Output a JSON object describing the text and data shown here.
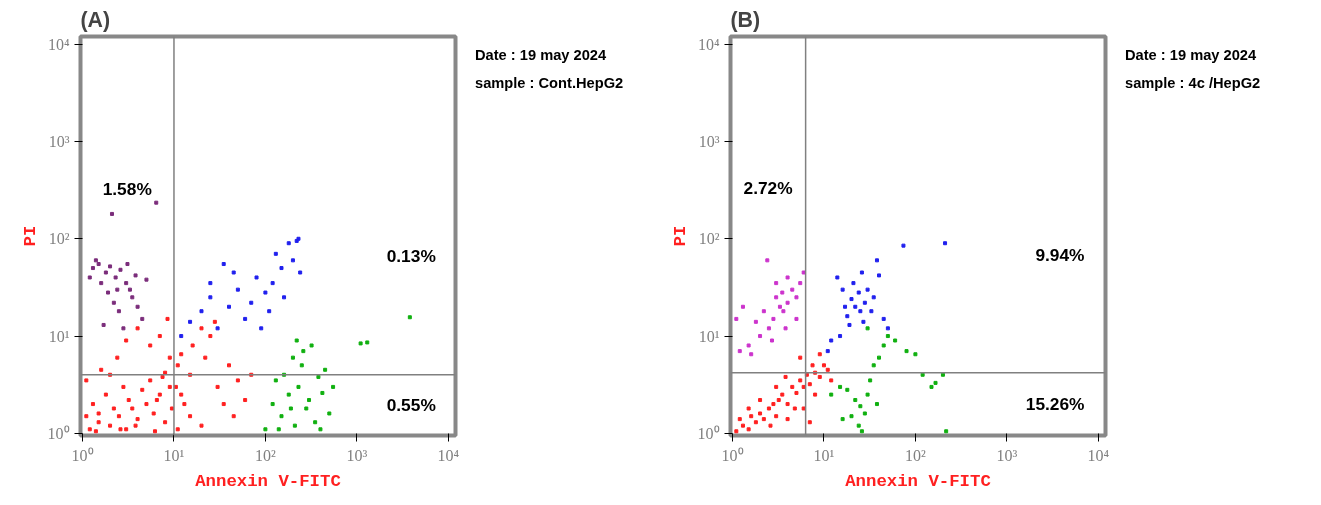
{
  "chart_data": [
    {
      "type": "scatter",
      "title": "(A)",
      "xlabel": "Annexin V-FITC",
      "ylabel": "PI",
      "log": "xy",
      "grid": false,
      "marker": "square",
      "xlim": [
        0.95,
        12000
      ],
      "ylim": [
        0.95,
        12000
      ],
      "xticks": [
        {
          "value": 1,
          "label": "10⁰"
        },
        {
          "value": 10,
          "label": "10¹"
        },
        {
          "value": 100,
          "label": "10²"
        },
        {
          "value": 1000,
          "label": "10³"
        },
        {
          "value": 10000,
          "label": "10⁴"
        }
      ],
      "yticks": [
        {
          "value": 1,
          "label": "10⁰"
        },
        {
          "value": 10,
          "label": "10¹"
        },
        {
          "value": 100,
          "label": "10²"
        },
        {
          "value": 1000,
          "label": "10³"
        },
        {
          "value": 10000,
          "label": "10⁴"
        }
      ],
      "ref_lines": [
        {
          "axis": "x",
          "value": 10,
          "color": "#808080"
        },
        {
          "axis": "y",
          "value": 4,
          "color": "#808080"
        }
      ],
      "annotations": [
        "Date : 19 may 2024",
        "sample : Cont.HepG2",
        "1.58%",
        "0.13%",
        "0.55%"
      ],
      "series": [
        {
          "color": "#ff2020",
          "x": [
            1.2,
            1.5,
            2,
            2.5,
            3,
            3.5,
            4,
            5,
            6,
            7,
            8,
            9,
            1.3,
            1.8,
            2.2,
            2.8,
            3.2,
            4.5,
            5.5,
            6.5,
            7.5,
            1.1,
            1.6,
            2.4,
            3,
            4,
            5.5,
            7,
            8.5,
            10.5,
            11,
            12,
            13,
            15,
            16,
            20,
            22,
            25,
            28,
            30,
            35,
            40,
            45,
            50,
            60,
            70,
            20,
            15,
            11,
            12,
            9.5,
            8,
            9,
            2,
            1.5,
            1.1,
            1.4,
            2.6,
            3.8,
            6.2
          ],
          "values": [
            1.1,
            1.3,
            1.2,
            1.5,
            1.1,
            1.8,
            1.4,
            2,
            1.6,
            2.5,
            1.3,
            3,
            2,
            2.5,
            1.8,
            3,
            2.2,
            2.8,
            3.5,
            2.2,
            3.8,
            3.5,
            4.5,
            6,
            9,
            12,
            8,
            10,
            15,
            3,
            5,
            6.5,
            2,
            4,
            8,
            12,
            6,
            10,
            14,
            3,
            2,
            5,
            1.5,
            3.5,
            2.2,
            4,
            1.2,
            1.5,
            1.1,
            2.5,
            1.8,
            4.2,
            6,
            4,
            1.6,
            1.5,
            1.05,
            1.1,
            1.2,
            1.05
          ]
        },
        {
          "color": "#7b2d7b",
          "x": [
            1.3,
            1.5,
            1.8,
            2,
            2.3,
            2.6,
            3,
            3.3,
            1.6,
            1.9,
            2.2,
            2.5,
            3.5,
            4,
            4.5,
            1.7,
            2.8,
            3.8,
            5,
            2.1,
            6.4,
            1.4,
            2.4,
            3.1,
            1.2
          ],
          "values": [
            50,
            55,
            45,
            52,
            40,
            48,
            35,
            30,
            35,
            28,
            22,
            18,
            25,
            20,
            15,
            13,
            12,
            42,
            38,
            180,
            235,
            60,
            30,
            55,
            40
          ]
        },
        {
          "color": "#2020ee",
          "x": [
            12,
            15,
            20,
            25,
            30,
            40,
            50,
            60,
            70,
            80,
            100,
            120,
            150,
            200,
            220,
            180,
            130,
            90,
            110,
            45,
            25,
            35,
            160,
            230,
            240
          ],
          "values": [
            10,
            14,
            18,
            25,
            12,
            20,
            30,
            15,
            22,
            40,
            28,
            35,
            50,
            60,
            95,
            90,
            70,
            12,
            18,
            45,
            35,
            55,
            25,
            100,
            45
          ]
        },
        {
          "color": "#10b010",
          "x": [
            100,
            120,
            130,
            150,
            160,
            180,
            200,
            210,
            230,
            250,
            280,
            300,
            320,
            350,
            380,
            400,
            420,
            450,
            500,
            550,
            220,
            260,
            1100,
            1300,
            3800,
            140,
            190
          ],
          "values": [
            1.1,
            2,
            3.5,
            1.5,
            4,
            2.5,
            6,
            1.2,
            3,
            5,
            1.8,
            2.2,
            8,
            1.3,
            3.8,
            1.1,
            2.6,
            4.5,
            1.6,
            3,
            9,
            7,
            8.4,
            8.6,
            15.6,
            1.1,
            1.8
          ]
        }
      ]
    },
    {
      "type": "scatter",
      "title": "(B)",
      "xlabel": "Annexin V-FITC",
      "ylabel": "PI",
      "log": "xy",
      "grid": false,
      "marker": "square",
      "xlim": [
        0.95,
        12000
      ],
      "ylim": [
        0.95,
        12000
      ],
      "xticks": [
        {
          "value": 1,
          "label": "10⁰"
        },
        {
          "value": 10,
          "label": "10¹"
        },
        {
          "value": 100,
          "label": "10²"
        },
        {
          "value": 1000,
          "label": "10³"
        },
        {
          "value": 10000,
          "label": "10⁴"
        }
      ],
      "yticks": [
        {
          "value": 1,
          "label": "10⁰"
        },
        {
          "value": 10,
          "label": "10¹"
        },
        {
          "value": 100,
          "label": "10²"
        },
        {
          "value": 1000,
          "label": "10³"
        },
        {
          "value": 10000,
          "label": "10⁴"
        }
      ],
      "ref_lines": [
        {
          "axis": "x",
          "value": 6.3,
          "color": "#808080"
        },
        {
          "axis": "y",
          "value": 4.2,
          "color": "#808080"
        }
      ],
      "annotations": [
        "Date : 19 may 2024",
        "sample : 4c /HepG2",
        "2.72%",
        "9.94%",
        "15.26%"
      ],
      "series": [
        {
          "color": "#ff2020",
          "x": [
            1.1,
            1.3,
            1.5,
            1.6,
            1.8,
            2,
            2.2,
            2.5,
            2.8,
            3,
            3.2,
            3.5,
            4,
            4.5,
            5,
            5.5,
            6,
            6.5,
            7,
            7.5,
            8,
            9,
            10,
            11,
            3,
            2,
            1.5,
            4,
            6,
            9,
            5.5,
            1.2,
            2.6,
            3.8,
            12,
            8,
            4.8,
            7
          ],
          "values": [
            1.05,
            1.2,
            1.1,
            1.5,
            1.3,
            1.6,
            1.4,
            1.8,
            2,
            1.5,
            2.2,
            2.5,
            2,
            3,
            2.6,
            3.5,
            3,
            4,
            3.2,
            5,
            4.2,
            3.8,
            5,
            4.5,
            3,
            2.2,
            1.8,
            1.4,
            1.8,
            6.5,
            6,
            1.4,
            1.2,
            3.8,
            3.5,
            2.5,
            1.8,
            1.3
          ]
        },
        {
          "color": "#cc33cc",
          "x": [
            3.3,
            3,
            3.6,
            2.8,
            4,
            3.5,
            2.5,
            2,
            1.5,
            1.2,
            4.5,
            5,
            5.5,
            2.2,
            1.8,
            3,
            4,
            2.4,
            1.3,
            1.1,
            6,
            3.8,
            2.7,
            1.6,
            5
          ],
          "values": [
            20,
            25,
            18,
            15,
            22,
            28,
            12,
            10,
            8,
            7,
            30,
            25,
            35,
            18,
            14,
            35,
            40,
            60,
            20,
            15,
            45,
            12,
            9,
            6.5,
            15
          ]
        },
        {
          "color": "#2020ee",
          "x": [
            22,
            20,
            25,
            18,
            28,
            24,
            19,
            15,
            12,
            30,
            35,
            16,
            14,
            26,
            40,
            45,
            50,
            21,
            17,
            27,
            33,
            11,
            74,
            211,
            38
          ],
          "values": [
            20,
            24,
            18,
            16,
            22,
            28,
            13,
            10,
            9,
            30,
            25,
            30,
            40,
            45,
            42,
            15,
            12,
            35,
            20,
            14,
            18,
            7,
            85,
            90,
            60
          ]
        },
        {
          "color": "#10b010",
          "x": [
            25,
            22,
            28,
            20,
            30,
            18,
            15,
            12,
            24,
            26,
            32,
            35,
            40,
            45,
            50,
            60,
            80,
            100,
            120,
            150,
            200,
            30,
            16,
            38,
            217,
            166
          ],
          "values": [
            1.9,
            2.2,
            1.6,
            1.5,
            2.5,
            2.8,
            3,
            2.5,
            1.2,
            1.05,
            3.5,
            5,
            6,
            8,
            10,
            9,
            7,
            6.5,
            4,
            3,
            4,
            12,
            1.4,
            2,
            1.05,
            3.3
          ]
        }
      ]
    }
  ]
}
